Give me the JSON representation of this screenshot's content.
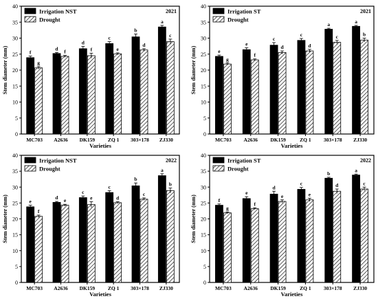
{
  "colors": {
    "irrigation": "#000000",
    "drought_stroke": "#000000",
    "background": "#ffffff"
  },
  "chart_data": [
    {
      "type": "bar",
      "panel": "top-left",
      "year": "2021",
      "legend": [
        "Irrigation NST",
        "Drought"
      ],
      "categories": [
        "MC703",
        "A2636",
        "DK159",
        "ZQ 1",
        "303×178",
        "ZJ330"
      ],
      "xlabel": "Varieties",
      "ylabel": "Stem diameter (mm)",
      "ylim": [
        0,
        40
      ],
      "yticks": [
        0,
        5,
        10,
        15,
        20,
        25,
        30,
        35,
        40
      ],
      "series": [
        {
          "name": "Irrigation NST",
          "values": [
            23.9,
            25.2,
            26.7,
            28.3,
            30.4,
            33.5
          ],
          "errors": [
            0.5,
            0.3,
            0.7,
            0.6,
            0.9,
            0.5
          ],
          "letters": [
            "f",
            "d",
            "d",
            "c",
            "b",
            "a"
          ]
        },
        {
          "name": "Drought",
          "values": [
            20.7,
            24.3,
            24.5,
            25.1,
            26.3,
            28.9
          ],
          "errors": [
            0.4,
            0.3,
            0.8,
            0.3,
            0.4,
            0.8
          ],
          "letters": [
            "g",
            "f",
            "f",
            "e",
            "d",
            "c"
          ]
        }
      ]
    },
    {
      "type": "bar",
      "panel": "top-right",
      "year": "2021",
      "legend": [
        "Irrigation ST",
        "Drought"
      ],
      "categories": [
        "MC703",
        "A2636",
        "DK159",
        "ZQ 1",
        "303×178",
        "ZJ330"
      ],
      "xlabel": "Varieties",
      "ylabel": "Stem diameter (mm)",
      "ylim": [
        0,
        40
      ],
      "yticks": [
        0,
        5,
        10,
        15,
        20,
        25,
        30,
        35,
        40
      ],
      "series": [
        {
          "name": "Irrigation ST",
          "values": [
            24.3,
            26.4,
            27.8,
            29.3,
            32.8,
            33.7
          ],
          "errors": [
            0.4,
            0.6,
            0.8,
            0.6,
            0.3,
            0.3
          ],
          "letters": [
            "e",
            "e",
            "c",
            "c",
            "a",
            "a"
          ]
        },
        {
          "name": "Drought",
          "values": [
            21.9,
            23.2,
            25.5,
            26.0,
            28.7,
            29.4
          ],
          "errors": [
            0.3,
            0.3,
            0.5,
            0.5,
            0.6,
            0.6
          ],
          "letters": [
            "g",
            "f",
            "d",
            "d",
            "c",
            "b"
          ]
        }
      ]
    },
    {
      "type": "bar",
      "panel": "bottom-left",
      "year": "2022",
      "legend": [
        "Irrigation NST",
        "Drought"
      ],
      "categories": [
        "MC703",
        "A2636",
        "DK159",
        "ZQ 1",
        "303×178",
        "ZJ330"
      ],
      "xlabel": "Varieties",
      "ylabel": "Stem diameter (mm)",
      "ylim": [
        0,
        40
      ],
      "yticks": [
        0,
        5,
        10,
        15,
        20,
        25,
        30,
        35,
        40
      ],
      "series": [
        {
          "name": "Irrigation NST",
          "values": [
            23.8,
            25.2,
            26.7,
            28.3,
            30.4,
            33.6
          ],
          "errors": [
            0.5,
            0.3,
            0.5,
            0.6,
            0.9,
            0.6
          ],
          "letters": [
            "e",
            "d",
            "c",
            "c",
            "b",
            "a"
          ]
        },
        {
          "name": "Drought",
          "values": [
            20.8,
            24.3,
            24.5,
            25.1,
            26.2,
            28.9
          ],
          "errors": [
            0.4,
            0.3,
            0.9,
            0.3,
            0.4,
            0.8
          ],
          "letters": [
            "f",
            "e",
            "e",
            "d",
            "c",
            "b"
          ]
        }
      ]
    },
    {
      "type": "bar",
      "panel": "bottom-right",
      "year": "2022",
      "legend": [
        "Irrigation ST",
        "Drought"
      ],
      "categories": [
        "MC703",
        "A2636",
        "DK159",
        "ZQ 1",
        "303×178",
        "ZJ330"
      ],
      "xlabel": "Varieties",
      "ylabel": "Stem diameter (mm)",
      "ylim": [
        0,
        40
      ],
      "yticks": [
        0,
        5,
        10,
        15,
        20,
        25,
        30,
        35,
        40
      ],
      "series": [
        {
          "name": "Irrigation ST",
          "values": [
            24.3,
            26.4,
            27.8,
            29.3,
            32.8,
            33.8
          ],
          "errors": [
            0.4,
            0.6,
            0.9,
            0.6,
            0.3,
            0.3
          ],
          "letters": [
            "f",
            "e",
            "d",
            "c",
            "b",
            "a"
          ]
        },
        {
          "name": "Drought",
          "values": [
            21.9,
            23.2,
            25.5,
            26.0,
            28.7,
            29.4
          ],
          "errors": [
            0.3,
            0.3,
            0.5,
            0.5,
            0.7,
            0.6
          ],
          "letters": [
            "g",
            "f",
            "e",
            "e",
            "d",
            "c"
          ]
        }
      ]
    }
  ]
}
